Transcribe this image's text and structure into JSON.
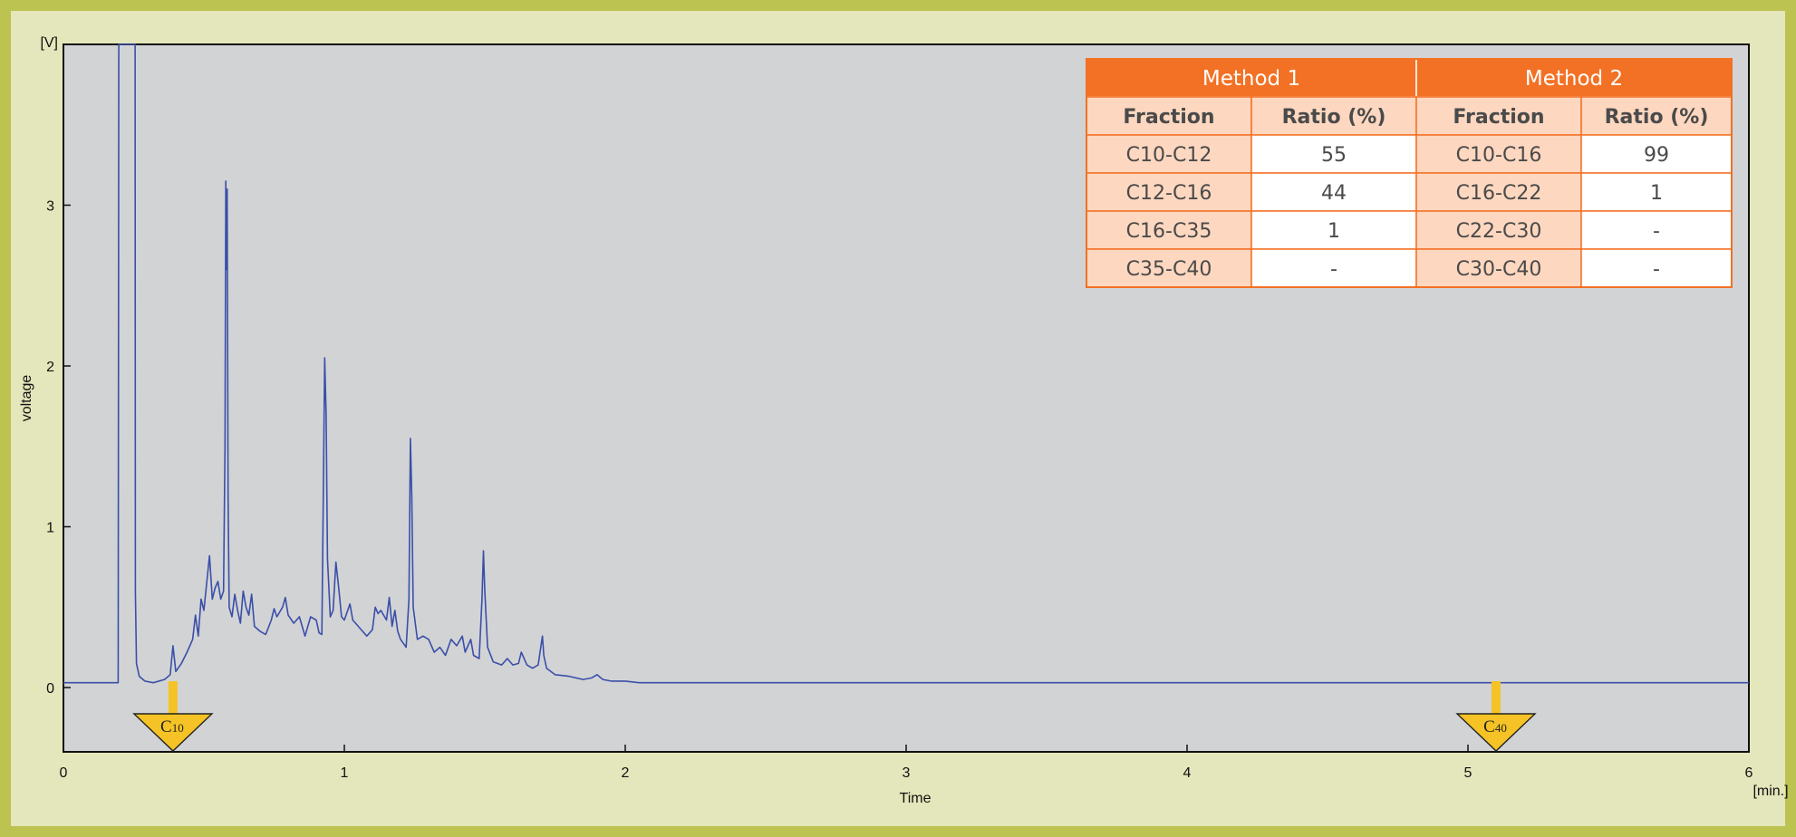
{
  "chart_data": {
    "type": "line",
    "xlabel": "Time",
    "ylabel": "voltage",
    "x_unit": "[min.]",
    "y_unit": "[V]",
    "xlim": [
      0,
      6
    ],
    "ylim": [
      -0.4,
      4.0
    ],
    "x_ticks": [
      "0",
      "1",
      "2",
      "3",
      "4",
      "5",
      "6"
    ],
    "y_ticks": [
      "0",
      "1",
      "2",
      "3"
    ],
    "grid": false,
    "series": [
      {
        "color": "#3a4fa8",
        "points": [
          [
            0,
            0.03
          ],
          [
            0.195,
            0.03
          ],
          [
            0.197,
            4.0
          ],
          [
            0.255,
            4.0
          ],
          [
            0.256,
            0.6
          ],
          [
            0.26,
            0.15
          ],
          [
            0.27,
            0.07
          ],
          [
            0.29,
            0.04
          ],
          [
            0.32,
            0.03
          ],
          [
            0.36,
            0.05
          ],
          [
            0.38,
            0.08
          ],
          [
            0.39,
            0.26
          ],
          [
            0.4,
            0.1
          ],
          [
            0.42,
            0.15
          ],
          [
            0.44,
            0.22
          ],
          [
            0.46,
            0.3
          ],
          [
            0.47,
            0.45
          ],
          [
            0.48,
            0.32
          ],
          [
            0.49,
            0.55
          ],
          [
            0.5,
            0.48
          ],
          [
            0.51,
            0.65
          ],
          [
            0.52,
            0.82
          ],
          [
            0.53,
            0.55
          ],
          [
            0.54,
            0.62
          ],
          [
            0.55,
            0.66
          ],
          [
            0.56,
            0.55
          ],
          [
            0.57,
            0.6
          ],
          [
            0.575,
            1.5
          ],
          [
            0.578,
            3.15
          ],
          [
            0.58,
            2.6
          ],
          [
            0.583,
            3.1
          ],
          [
            0.586,
            1.2
          ],
          [
            0.59,
            0.5
          ],
          [
            0.6,
            0.44
          ],
          [
            0.61,
            0.58
          ],
          [
            0.62,
            0.48
          ],
          [
            0.63,
            0.4
          ],
          [
            0.64,
            0.6
          ],
          [
            0.65,
            0.5
          ],
          [
            0.66,
            0.45
          ],
          [
            0.67,
            0.58
          ],
          [
            0.68,
            0.38
          ],
          [
            0.7,
            0.35
          ],
          [
            0.72,
            0.33
          ],
          [
            0.74,
            0.42
          ],
          [
            0.75,
            0.49
          ],
          [
            0.76,
            0.44
          ],
          [
            0.78,
            0.5
          ],
          [
            0.79,
            0.56
          ],
          [
            0.8,
            0.45
          ],
          [
            0.82,
            0.4
          ],
          [
            0.84,
            0.44
          ],
          [
            0.86,
            0.32
          ],
          [
            0.88,
            0.44
          ],
          [
            0.9,
            0.42
          ],
          [
            0.91,
            0.34
          ],
          [
            0.92,
            0.33
          ],
          [
            0.925,
            1.2
          ],
          [
            0.93,
            2.05
          ],
          [
            0.935,
            1.7
          ],
          [
            0.94,
            0.8
          ],
          [
            0.95,
            0.44
          ],
          [
            0.96,
            0.48
          ],
          [
            0.97,
            0.78
          ],
          [
            0.98,
            0.62
          ],
          [
            0.99,
            0.44
          ],
          [
            1.0,
            0.42
          ],
          [
            1.02,
            0.52
          ],
          [
            1.03,
            0.42
          ],
          [
            1.04,
            0.4
          ],
          [
            1.06,
            0.36
          ],
          [
            1.08,
            0.32
          ],
          [
            1.1,
            0.36
          ],
          [
            1.11,
            0.5
          ],
          [
            1.12,
            0.46
          ],
          [
            1.13,
            0.48
          ],
          [
            1.15,
            0.42
          ],
          [
            1.16,
            0.56
          ],
          [
            1.17,
            0.38
          ],
          [
            1.18,
            0.48
          ],
          [
            1.19,
            0.35
          ],
          [
            1.2,
            0.3
          ],
          [
            1.22,
            0.25
          ],
          [
            1.23,
            0.55
          ],
          [
            1.235,
            1.55
          ],
          [
            1.24,
            1.2
          ],
          [
            1.245,
            0.5
          ],
          [
            1.26,
            0.3
          ],
          [
            1.28,
            0.32
          ],
          [
            1.3,
            0.3
          ],
          [
            1.32,
            0.22
          ],
          [
            1.34,
            0.25
          ],
          [
            1.36,
            0.2
          ],
          [
            1.38,
            0.3
          ],
          [
            1.4,
            0.26
          ],
          [
            1.42,
            0.32
          ],
          [
            1.43,
            0.22
          ],
          [
            1.44,
            0.26
          ],
          [
            1.45,
            0.3
          ],
          [
            1.46,
            0.2
          ],
          [
            1.48,
            0.18
          ],
          [
            1.49,
            0.55
          ],
          [
            1.495,
            0.85
          ],
          [
            1.5,
            0.6
          ],
          [
            1.51,
            0.25
          ],
          [
            1.53,
            0.16
          ],
          [
            1.56,
            0.14
          ],
          [
            1.58,
            0.18
          ],
          [
            1.6,
            0.14
          ],
          [
            1.62,
            0.15
          ],
          [
            1.63,
            0.22
          ],
          [
            1.65,
            0.14
          ],
          [
            1.67,
            0.12
          ],
          [
            1.69,
            0.14
          ],
          [
            1.7,
            0.26
          ],
          [
            1.705,
            0.32
          ],
          [
            1.71,
            0.2
          ],
          [
            1.72,
            0.12
          ],
          [
            1.75,
            0.08
          ],
          [
            1.8,
            0.07
          ],
          [
            1.85,
            0.05
          ],
          [
            1.88,
            0.06
          ],
          [
            1.9,
            0.08
          ],
          [
            1.92,
            0.05
          ],
          [
            1.95,
            0.04
          ],
          [
            2.0,
            0.04
          ],
          [
            2.05,
            0.03
          ],
          [
            2.1,
            0.03
          ],
          [
            2.2,
            0.03
          ],
          [
            3.0,
            0.03
          ],
          [
            4.0,
            0.03
          ],
          [
            5.0,
            0.03
          ],
          [
            6.0,
            0.03
          ]
        ]
      }
    ],
    "markers": [
      {
        "label": "C",
        "sub": "10",
        "x": 0.39,
        "color": "#f5c325"
      },
      {
        "label": "C",
        "sub": "40",
        "x": 5.1,
        "color": "#f5c325"
      }
    ],
    "table": {
      "methods": [
        "Method 1",
        "Method 2"
      ],
      "headers": [
        "Fraction",
        "Ratio (%)",
        "Fraction",
        "Ratio (%)"
      ],
      "rows": [
        [
          "C10-C12",
          "55",
          "C10-C16",
          "99"
        ],
        [
          "C12-C16",
          "44",
          "C16-C22",
          "1"
        ],
        [
          "C16-C35",
          "1",
          "C22-C30",
          "-"
        ],
        [
          "C35-C40",
          "-",
          "C30-C40",
          "-"
        ]
      ],
      "header_color": "#f37124",
      "label_color": "#fdd7bf",
      "value_color": "#ffffff"
    }
  }
}
